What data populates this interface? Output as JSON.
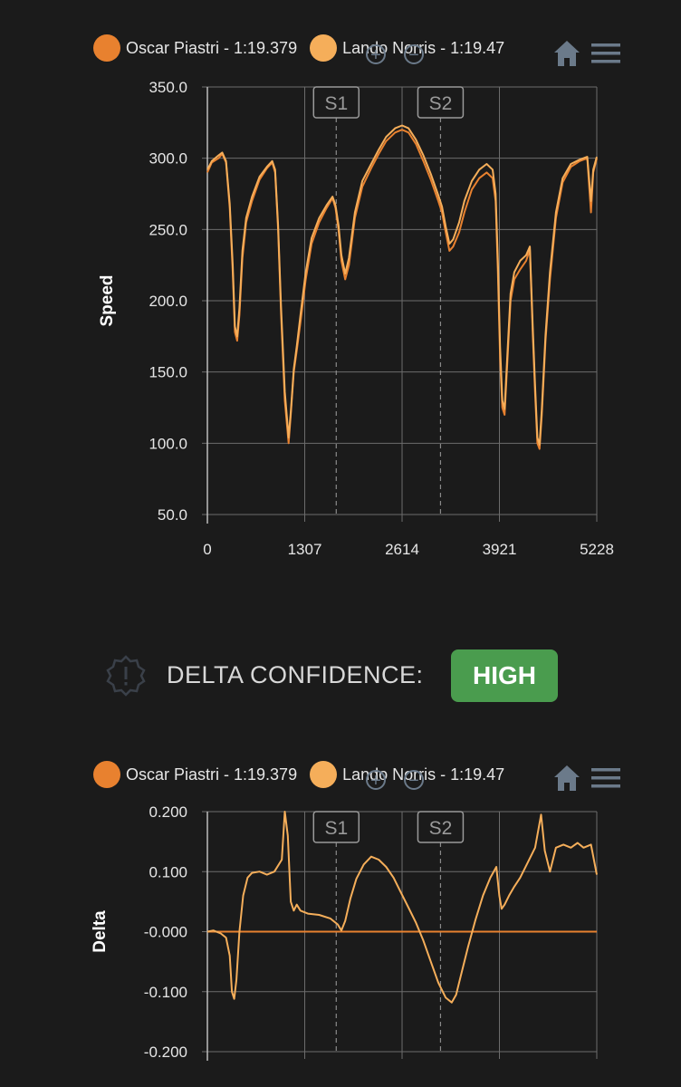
{
  "colors": {
    "background": "#1b1b1b",
    "piastri": "#e8812f",
    "norris": "#f5ae5a",
    "badge": "#4a9c4e",
    "grid": "#6c6c6c",
    "icon": "#6b7a8a"
  },
  "legend": [
    {
      "label": "Oscar Piastri - 1:19.379",
      "color": "#e8812f"
    },
    {
      "label": "Lando Norris - 1:19.47",
      "color": "#f5ae5a"
    }
  ],
  "toolbar": {
    "zoom_in_icon": "zoom-in-icon",
    "zoom_out_icon": "zoom-out-icon",
    "home_icon": "home-icon",
    "menu_icon": "hamburger-menu-icon"
  },
  "confidence": {
    "label": "DELTA CONFIDENCE:",
    "value": "HIGH",
    "icon": "alert-badge-icon"
  },
  "chart_data": [
    {
      "type": "line",
      "ylabel": "Speed",
      "xlabel": "",
      "xlim": [
        0,
        5228
      ],
      "ylim": [
        50,
        350
      ],
      "xticks": [
        0,
        1307,
        2614,
        3921,
        5228
      ],
      "yticks": [
        "350.0",
        "300.0",
        "250.0",
        "200.0",
        "150.0",
        "100.0",
        "50.0"
      ],
      "sector_markers": [
        {
          "label": "S1",
          "x": 1730
        },
        {
          "label": "S2",
          "x": 3130
        }
      ],
      "series": [
        {
          "name": "Oscar Piastri - 1:19.379",
          "points": [
            [
              0,
              290
            ],
            [
              60,
              297
            ],
            [
              150,
              300
            ],
            [
              200,
              303
            ],
            [
              250,
              297
            ],
            [
              300,
              265
            ],
            [
              340,
              220
            ],
            [
              370,
              178
            ],
            [
              400,
              172
            ],
            [
              430,
              190
            ],
            [
              470,
              230
            ],
            [
              520,
              255
            ],
            [
              600,
              270
            ],
            [
              700,
              285
            ],
            [
              800,
              293
            ],
            [
              870,
              297
            ],
            [
              910,
              290
            ],
            [
              950,
              250
            ],
            [
              990,
              190
            ],
            [
              1040,
              130
            ],
            [
              1090,
              100
            ],
            [
              1120,
              120
            ],
            [
              1160,
              150
            ],
            [
              1200,
              165
            ],
            [
              1250,
              185
            ],
            [
              1320,
              215
            ],
            [
              1400,
              240
            ],
            [
              1500,
              255
            ],
            [
              1600,
              265
            ],
            [
              1680,
              272
            ],
            [
              1720,
              265
            ],
            [
              1760,
              250
            ],
            [
              1800,
              228
            ],
            [
              1850,
              215
            ],
            [
              1900,
              225
            ],
            [
              1980,
              258
            ],
            [
              2080,
              280
            ],
            [
              2200,
              293
            ],
            [
              2300,
              303
            ],
            [
              2400,
              312
            ],
            [
              2520,
              318
            ],
            [
              2614,
              320
            ],
            [
              2700,
              318
            ],
            [
              2800,
              310
            ],
            [
              2900,
              298
            ],
            [
              3000,
              285
            ],
            [
              3100,
              270
            ],
            [
              3150,
              262
            ],
            [
              3200,
              248
            ],
            [
              3250,
              235
            ],
            [
              3300,
              238
            ],
            [
              3380,
              248
            ],
            [
              3450,
              262
            ],
            [
              3550,
              278
            ],
            [
              3650,
              286
            ],
            [
              3750,
              290
            ],
            [
              3830,
              286
            ],
            [
              3870,
              270
            ],
            [
              3900,
              220
            ],
            [
              3930,
              160
            ],
            [
              3960,
              125
            ],
            [
              3990,
              120
            ],
            [
              4030,
              160
            ],
            [
              4070,
              200
            ],
            [
              4120,
              215
            ],
            [
              4200,
              222
            ],
            [
              4280,
              228
            ],
            [
              4330,
              236
            ],
            [
              4370,
              175
            ],
            [
              4400,
              135
            ],
            [
              4430,
              100
            ],
            [
              4460,
              96
            ],
            [
              4490,
              120
            ],
            [
              4540,
              172
            ],
            [
              4600,
              215
            ],
            [
              4680,
              258
            ],
            [
              4770,
              283
            ],
            [
              4880,
              294
            ],
            [
              5000,
              298
            ],
            [
              5100,
              300
            ],
            [
              5150,
              262
            ],
            [
              5180,
              290
            ],
            [
              5228,
              300
            ]
          ]
        },
        {
          "name": "Lando Norris - 1:19.47",
          "points": [
            [
              0,
              292
            ],
            [
              60,
              298
            ],
            [
              150,
              302
            ],
            [
              200,
              304
            ],
            [
              250,
              298
            ],
            [
              300,
              268
            ],
            [
              340,
              225
            ],
            [
              370,
              182
            ],
            [
              400,
              175
            ],
            [
              430,
              195
            ],
            [
              470,
              235
            ],
            [
              520,
              258
            ],
            [
              600,
              273
            ],
            [
              700,
              287
            ],
            [
              800,
              294
            ],
            [
              870,
              298
            ],
            [
              910,
              292
            ],
            [
              950,
              253
            ],
            [
              990,
              195
            ],
            [
              1040,
              136
            ],
            [
              1090,
              104
            ],
            [
              1120,
              122
            ],
            [
              1160,
              152
            ],
            [
              1200,
              168
            ],
            [
              1250,
              190
            ],
            [
              1320,
              220
            ],
            [
              1400,
              244
            ],
            [
              1500,
              258
            ],
            [
              1600,
              267
            ],
            [
              1680,
              273
            ],
            [
              1720,
              267
            ],
            [
              1760,
              253
            ],
            [
              1800,
              232
            ],
            [
              1850,
              219
            ],
            [
              1900,
              230
            ],
            [
              1980,
              262
            ],
            [
              2080,
              284
            ],
            [
              2200,
              296
            ],
            [
              2300,
              306
            ],
            [
              2400,
              315
            ],
            [
              2520,
              321
            ],
            [
              2614,
              323
            ],
            [
              2700,
              321
            ],
            [
              2800,
              313
            ],
            [
              2900,
              302
            ],
            [
              3000,
              289
            ],
            [
              3100,
              274
            ],
            [
              3150,
              266
            ],
            [
              3200,
              252
            ],
            [
              3250,
              240
            ],
            [
              3300,
              243
            ],
            [
              3380,
              255
            ],
            [
              3450,
              270
            ],
            [
              3550,
              284
            ],
            [
              3650,
              292
            ],
            [
              3750,
              296
            ],
            [
              3830,
              292
            ],
            [
              3870,
              275
            ],
            [
              3900,
              228
            ],
            [
              3930,
              168
            ],
            [
              3960,
              130
            ],
            [
              3990,
              124
            ],
            [
              4030,
              165
            ],
            [
              4070,
              205
            ],
            [
              4120,
              220
            ],
            [
              4200,
              228
            ],
            [
              4280,
              232
            ],
            [
              4330,
              238
            ],
            [
              4370,
              180
            ],
            [
              4400,
              140
            ],
            [
              4430,
              104
            ],
            [
              4460,
              99
            ],
            [
              4490,
              124
            ],
            [
              4540,
              176
            ],
            [
              4600,
              220
            ],
            [
              4680,
              262
            ],
            [
              4770,
              286
            ],
            [
              4880,
              296
            ],
            [
              5000,
              299
            ],
            [
              5100,
              301
            ],
            [
              5150,
              270
            ],
            [
              5180,
              292
            ],
            [
              5228,
              301
            ]
          ]
        }
      ]
    },
    {
      "type": "line",
      "ylabel": "Delta",
      "xlabel": "",
      "xlim": [
        0,
        5228
      ],
      "ylim": [
        -0.2,
        0.2
      ],
      "yticks": [
        "0.200",
        "0.100",
        "-0.000",
        "-0.100",
        "-0.200"
      ],
      "sector_markers": [
        {
          "label": "S1",
          "x": 1730
        },
        {
          "label": "S2",
          "x": 3130
        }
      ],
      "series": [
        {
          "name": "Oscar Piastri - 1:19.379",
          "points": [
            [
              0,
              0
            ],
            [
              5228,
              0
            ]
          ]
        },
        {
          "name": "Lando Norris - 1:19.47",
          "points": [
            [
              0,
              0
            ],
            [
              80,
              0.002
            ],
            [
              180,
              -0.003
            ],
            [
              250,
              -0.01
            ],
            [
              300,
              -0.04
            ],
            [
              330,
              -0.1
            ],
            [
              360,
              -0.112
            ],
            [
              390,
              -0.08
            ],
            [
              430,
              0.0
            ],
            [
              480,
              0.06
            ],
            [
              540,
              0.09
            ],
            [
              600,
              0.098
            ],
            [
              700,
              0.1
            ],
            [
              800,
              0.095
            ],
            [
              900,
              0.1
            ],
            [
              1000,
              0.12
            ],
            [
              1040,
              0.2
            ],
            [
              1080,
              0.16
            ],
            [
              1120,
              0.05
            ],
            [
              1160,
              0.035
            ],
            [
              1200,
              0.045
            ],
            [
              1250,
              0.035
            ],
            [
              1350,
              0.03
            ],
            [
              1500,
              0.028
            ],
            [
              1650,
              0.022
            ],
            [
              1750,
              0.012
            ],
            [
              1800,
              0.002
            ],
            [
              1850,
              0.018
            ],
            [
              1920,
              0.055
            ],
            [
              2000,
              0.088
            ],
            [
              2100,
              0.112
            ],
            [
              2200,
              0.125
            ],
            [
              2300,
              0.12
            ],
            [
              2400,
              0.108
            ],
            [
              2500,
              0.09
            ],
            [
              2600,
              0.065
            ],
            [
              2700,
              0.04
            ],
            [
              2800,
              0.015
            ],
            [
              2900,
              -0.015
            ],
            [
              3000,
              -0.05
            ],
            [
              3100,
              -0.085
            ],
            [
              3200,
              -0.11
            ],
            [
              3280,
              -0.118
            ],
            [
              3340,
              -0.105
            ],
            [
              3400,
              -0.075
            ],
            [
              3500,
              -0.025
            ],
            [
              3600,
              0.02
            ],
            [
              3700,
              0.06
            ],
            [
              3800,
              0.09
            ],
            [
              3880,
              0.108
            ],
            [
              3920,
              0.06
            ],
            [
              3950,
              0.038
            ],
            [
              3990,
              0.045
            ],
            [
              4050,
              0.06
            ],
            [
              4120,
              0.075
            ],
            [
              4200,
              0.09
            ],
            [
              4300,
              0.115
            ],
            [
              4400,
              0.14
            ],
            [
              4480,
              0.195
            ],
            [
              4530,
              0.135
            ],
            [
              4600,
              0.1
            ],
            [
              4680,
              0.14
            ],
            [
              4780,
              0.145
            ],
            [
              4880,
              0.14
            ],
            [
              4970,
              0.148
            ],
            [
              5050,
              0.14
            ],
            [
              5150,
              0.145
            ],
            [
              5228,
              0.095
            ]
          ]
        }
      ]
    }
  ]
}
